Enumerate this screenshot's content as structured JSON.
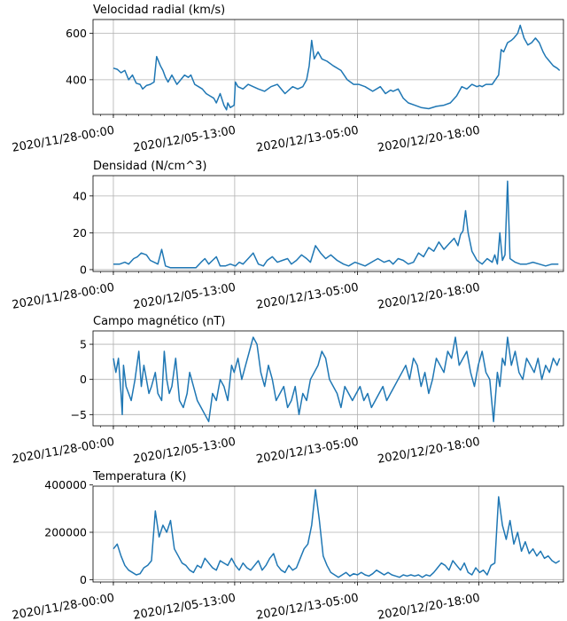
{
  "chart_data": [
    {
      "type": "line",
      "title": "Velocidad radial (km/s)",
      "color": "#1f77b4",
      "ylim": [
        250,
        660
      ],
      "yticks": [
        400,
        600
      ],
      "ytick_labels": [
        "400",
        "600"
      ],
      "xlim": [
        -1.6,
        35.4
      ],
      "x_ticks": [
        0,
        9.5417,
        19.2083,
        28.75
      ],
      "x_tick_labels": [
        "2020/11/28-00:00",
        "2020/12/05-13:00",
        "2020/12/13-05:00",
        "2020/12/20-18:00"
      ],
      "grid": true,
      "series": [
        {
          "x": [
            0,
            0.3,
            0.6,
            0.9,
            1.2,
            1.5,
            1.8,
            2.1,
            2.3,
            2.6,
            2.9,
            3.2,
            3.4,
            3.7,
            3.9,
            4.1,
            4.3,
            4.6,
            5.0,
            5.3,
            5.6,
            5.9,
            6.1,
            6.4,
            6.7,
            7.0,
            7.3,
            7.6,
            7.9,
            8.1,
            8.4,
            8.7,
            8.9,
            9.0,
            9.2,
            9.5,
            9.6,
            9.8,
            10.2,
            10.6,
            11.0,
            11.4,
            11.9,
            12.4,
            12.9,
            13.5,
            14.1,
            14.5,
            14.9,
            15.2,
            15.4,
            15.6,
            15.8,
            16.1,
            16.4,
            16.8,
            17.3,
            17.9,
            18.4,
            18.9,
            19.3,
            19.8,
            20.4,
            21.0,
            21.4,
            21.8,
            22.0,
            22.4,
            22.8,
            23.2,
            23.7,
            24.2,
            24.8,
            25.4,
            26.0,
            26.5,
            27.0,
            27.4,
            27.8,
            28.2,
            28.6,
            28.8,
            29.0,
            29.3,
            29.8,
            30.3,
            30.5,
            30.7,
            31.0,
            31.3,
            31.5,
            31.8,
            32.0,
            32.3,
            32.6,
            32.9,
            33.2,
            33.5,
            33.8,
            34.0,
            34.3,
            34.6,
            34.9,
            35.1
          ],
          "y": [
            450,
            445,
            430,
            440,
            400,
            420,
            385,
            380,
            360,
            375,
            380,
            390,
            500,
            460,
            440,
            410,
            390,
            420,
            380,
            400,
            420,
            410,
            420,
            380,
            370,
            360,
            340,
            330,
            320,
            300,
            340,
            290,
            270,
            300,
            280,
            290,
            390,
            370,
            360,
            380,
            370,
            360,
            350,
            370,
            380,
            340,
            370,
            360,
            370,
            400,
            460,
            570,
            490,
            520,
            490,
            480,
            460,
            440,
            400,
            380,
            380,
            370,
            350,
            370,
            340,
            355,
            350,
            360,
            320,
            300,
            290,
            280,
            275,
            285,
            290,
            300,
            330,
            370,
            360,
            380,
            370,
            375,
            370,
            380,
            380,
            420,
            530,
            520,
            560,
            570,
            580,
            600,
            635,
            580,
            550,
            560,
            580,
            560,
            520,
            500,
            480,
            460,
            450,
            440
          ]
        }
      ]
    },
    {
      "type": "line",
      "title": "Densidad (N/cm^3)",
      "color": "#1f77b4",
      "ylim": [
        -1,
        51
      ],
      "yticks": [
        0,
        20,
        40
      ],
      "ytick_labels": [
        "0",
        "20",
        "40"
      ],
      "xlim": [
        -1.6,
        35.4
      ],
      "x_ticks": [
        0,
        9.5417,
        19.2083,
        28.75
      ],
      "x_tick_labels": [
        "2020/11/28-00:00",
        "2020/12/05-13:00",
        "2020/12/13-05:00",
        "2020/12/20-18:00"
      ],
      "grid": true,
      "series": [
        {
          "x": [
            0,
            0.5,
            0.9,
            1.2,
            1.6,
            1.9,
            2.2,
            2.6,
            2.9,
            3.2,
            3.5,
            3.8,
            4.1,
            4.5,
            5.0,
            5.5,
            6.0,
            6.5,
            6.9,
            7.2,
            7.5,
            7.8,
            8.1,
            8.4,
            8.8,
            9.2,
            9.6,
            9.9,
            10.2,
            10.6,
            11.0,
            11.4,
            11.8,
            12.1,
            12.5,
            12.9,
            13.3,
            13.7,
            14.0,
            14.4,
            14.8,
            15.2,
            15.5,
            15.9,
            16.3,
            16.7,
            17.1,
            17.6,
            18.1,
            18.5,
            19.0,
            19.4,
            19.8,
            20.3,
            20.8,
            21.3,
            21.7,
            22.0,
            22.4,
            22.8,
            23.2,
            23.6,
            24.0,
            24.4,
            24.8,
            25.2,
            25.6,
            26.0,
            26.4,
            26.8,
            27.1,
            27.3,
            27.5,
            27.7,
            27.9,
            28.2,
            28.6,
            29.0,
            29.4,
            29.8,
            30.0,
            30.2,
            30.4,
            30.6,
            30.8,
            31.0,
            31.2,
            31.6,
            32.0,
            32.5,
            33.0,
            33.5,
            34.0,
            34.5,
            35.0
          ],
          "y": [
            3,
            3,
            4,
            3,
            6,
            7,
            9,
            8,
            5,
            4,
            3,
            11,
            2,
            1,
            1,
            1,
            1,
            1,
            4,
            6,
            3,
            5,
            7,
            2,
            2,
            3,
            2,
            4,
            3,
            6,
            9,
            3,
            2,
            5,
            7,
            4,
            5,
            6,
            3,
            5,
            8,
            6,
            4,
            13,
            9,
            6,
            8,
            5,
            3,
            2,
            4,
            3,
            2,
            4,
            6,
            4,
            5,
            3,
            6,
            5,
            3,
            4,
            9,
            7,
            12,
            10,
            15,
            11,
            14,
            17,
            13,
            19,
            21,
            32,
            20,
            10,
            5,
            3,
            6,
            4,
            8,
            3,
            20,
            5,
            8,
            48,
            6,
            4,
            3,
            3,
            4,
            3,
            2,
            3,
            3
          ]
        }
      ]
    },
    {
      "type": "line",
      "title": "Campo magnético (nT)",
      "color": "#1f77b4",
      "ylim": [
        -6.6,
        6.9
      ],
      "yticks": [
        -5,
        0,
        5
      ],
      "ytick_labels": [
        "−5",
        "0",
        "5"
      ],
      "xlim": [
        -1.6,
        35.4
      ],
      "x_ticks": [
        0,
        9.5417,
        19.2083,
        28.75
      ],
      "x_tick_labels": [
        "2020/11/28-00:00",
        "2020/12/05-13:00",
        "2020/12/13-05:00",
        "2020/12/20-18:00"
      ],
      "grid": true,
      "series": [
        {
          "x": [
            0,
            0.2,
            0.4,
            0.6,
            0.7,
            0.8,
            1.0,
            1.2,
            1.4,
            1.7,
            2.0,
            2.2,
            2.4,
            2.6,
            2.8,
            3.0,
            3.3,
            3.5,
            3.8,
            4.0,
            4.2,
            4.4,
            4.6,
            4.9,
            5.2,
            5.5,
            5.8,
            6.0,
            6.3,
            6.6,
            6.9,
            7.2,
            7.5,
            7.8,
            8.1,
            8.4,
            8.7,
            9.0,
            9.3,
            9.5,
            9.8,
            10.1,
            10.4,
            10.7,
            11.0,
            11.3,
            11.6,
            11.9,
            12.2,
            12.5,
            12.8,
            13.1,
            13.4,
            13.7,
            14.0,
            14.3,
            14.6,
            14.9,
            15.2,
            15.5,
            15.8,
            16.1,
            16.4,
            16.7,
            17.0,
            17.3,
            17.6,
            17.9,
            18.2,
            18.5,
            18.8,
            19.1,
            19.4,
            19.7,
            20.0,
            20.3,
            20.6,
            20.9,
            21.2,
            21.5,
            21.8,
            22.1,
            22.4,
            22.7,
            23.0,
            23.3,
            23.6,
            23.9,
            24.2,
            24.5,
            24.8,
            25.1,
            25.4,
            25.7,
            26.0,
            26.3,
            26.6,
            26.9,
            27.2,
            27.5,
            27.8,
            28.1,
            28.4,
            28.7,
            29.0,
            29.3,
            29.6,
            29.9,
            30.2,
            30.4,
            30.6,
            30.8,
            31.0,
            31.3,
            31.6,
            31.9,
            32.2,
            32.5,
            32.8,
            33.1,
            33.4,
            33.7,
            34.0,
            34.3,
            34.6,
            34.9,
            35.1
          ],
          "y": [
            3,
            1,
            3,
            -2,
            -5,
            2,
            -1,
            -2,
            -3,
            0,
            4,
            -1,
            2,
            0,
            -2,
            -1,
            1,
            -2,
            -3,
            4,
            0,
            -2,
            -1,
            3,
            -3,
            -4,
            -2,
            1,
            -1,
            -3,
            -4,
            -5,
            -6,
            -2,
            -3,
            0,
            -1,
            -3,
            2,
            1,
            3,
            0,
            2,
            4,
            6,
            5,
            1,
            -1,
            2,
            0,
            -3,
            -2,
            -1,
            -4,
            -3,
            -1,
            -5,
            -2,
            -3,
            0,
            1,
            2,
            4,
            3,
            0,
            -1,
            -2,
            -4,
            -1,
            -2,
            -3,
            -2,
            -1,
            -3,
            -2,
            -4,
            -3,
            -2,
            -1,
            -3,
            -2,
            -1,
            0,
            1,
            2,
            0,
            3,
            2,
            -1,
            1,
            -2,
            0,
            3,
            2,
            1,
            4,
            3,
            6,
            2,
            3,
            4,
            1,
            -1,
            2,
            4,
            1,
            0,
            -6,
            1,
            -1,
            3,
            2,
            6,
            2,
            4,
            1,
            0,
            3,
            2,
            1,
            3,
            0,
            2,
            1,
            3,
            2,
            3
          ]
        }
      ]
    },
    {
      "type": "line",
      "title": "Temperatura (K)",
      "color": "#1f77b4",
      "ylim": [
        -10000,
        395000
      ],
      "yticks": [
        0,
        200000,
        400000
      ],
      "ytick_labels": [
        "0",
        "200000",
        "400000"
      ],
      "xlim": [
        -1.6,
        35.4
      ],
      "x_ticks": [
        0,
        9.5417,
        19.2083,
        28.75
      ],
      "x_tick_labels": [
        "2020/11/28-00:00",
        "2020/12/05-13:00",
        "2020/12/13-05:00",
        "2020/12/20-18:00"
      ],
      "grid": true,
      "series": [
        {
          "x": [
            0,
            0.3,
            0.6,
            0.9,
            1.2,
            1.5,
            1.8,
            2.1,
            2.4,
            2.7,
            3.0,
            3.3,
            3.6,
            3.9,
            4.2,
            4.5,
            4.8,
            5.1,
            5.4,
            5.7,
            6.0,
            6.3,
            6.6,
            6.9,
            7.2,
            7.5,
            7.8,
            8.1,
            8.4,
            8.7,
            9.0,
            9.3,
            9.6,
            9.9,
            10.2,
            10.5,
            10.8,
            11.1,
            11.4,
            11.7,
            12.0,
            12.3,
            12.6,
            12.9,
            13.2,
            13.5,
            13.8,
            14.1,
            14.4,
            14.7,
            15.0,
            15.3,
            15.6,
            15.9,
            16.2,
            16.5,
            16.8,
            17.1,
            17.4,
            17.7,
            18.0,
            18.3,
            18.6,
            18.9,
            19.2,
            19.5,
            19.8,
            20.1,
            20.4,
            20.7,
            21.0,
            21.3,
            21.6,
            21.9,
            22.2,
            22.5,
            22.8,
            23.1,
            23.4,
            23.7,
            24.0,
            24.3,
            24.6,
            24.9,
            25.2,
            25.5,
            25.8,
            26.1,
            26.4,
            26.7,
            27.0,
            27.3,
            27.6,
            27.9,
            28.2,
            28.5,
            28.8,
            29.1,
            29.4,
            29.7,
            30.0,
            30.3,
            30.6,
            30.9,
            31.2,
            31.5,
            31.8,
            32.1,
            32.4,
            32.7,
            33.0,
            33.3,
            33.6,
            33.9,
            34.2,
            34.5,
            34.8,
            35.1
          ],
          "y": [
            130000,
            150000,
            100000,
            60000,
            40000,
            30000,
            20000,
            25000,
            50000,
            60000,
            80000,
            290000,
            180000,
            230000,
            200000,
            250000,
            130000,
            100000,
            70000,
            60000,
            40000,
            30000,
            60000,
            50000,
            90000,
            70000,
            50000,
            40000,
            80000,
            70000,
            60000,
            90000,
            60000,
            40000,
            70000,
            50000,
            40000,
            60000,
            80000,
            40000,
            60000,
            90000,
            110000,
            60000,
            40000,
            30000,
            60000,
            40000,
            50000,
            90000,
            130000,
            150000,
            230000,
            380000,
            250000,
            100000,
            60000,
            30000,
            20000,
            10000,
            20000,
            30000,
            15000,
            25000,
            20000,
            30000,
            20000,
            15000,
            25000,
            40000,
            30000,
            20000,
            30000,
            20000,
            15000,
            10000,
            20000,
            15000,
            20000,
            15000,
            20000,
            10000,
            20000,
            15000,
            30000,
            50000,
            70000,
            60000,
            40000,
            80000,
            60000,
            40000,
            70000,
            30000,
            20000,
            50000,
            30000,
            40000,
            20000,
            60000,
            70000,
            350000,
            230000,
            170000,
            250000,
            150000,
            200000,
            120000,
            160000,
            110000,
            130000,
            100000,
            120000,
            90000,
            100000,
            80000,
            70000,
            80000
          ]
        }
      ]
    }
  ]
}
